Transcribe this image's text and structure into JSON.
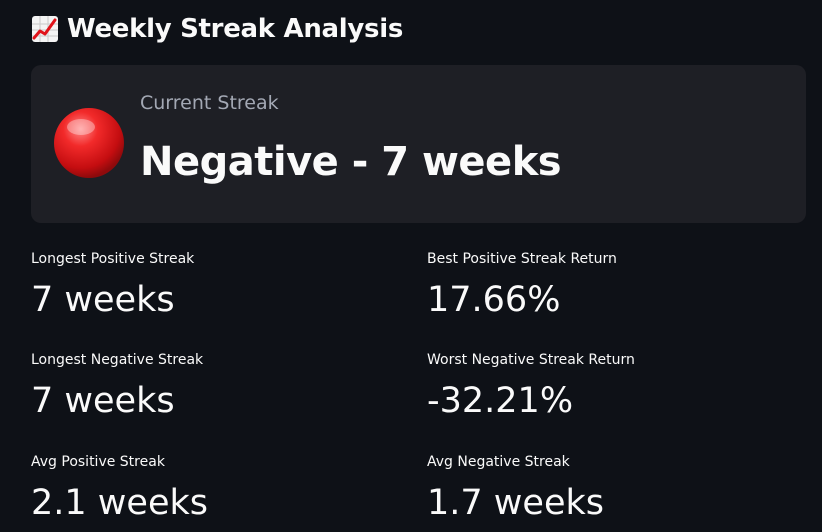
{
  "header": {
    "title": "Weekly Streak Analysis",
    "icon": "chart-increasing-icon"
  },
  "current_streak": {
    "label": "Current Streak",
    "value": "Negative - 7 weeks",
    "indicator": "red-circle-icon",
    "indicator_color": "#e0131a"
  },
  "metrics": {
    "longest_positive": {
      "label": "Longest Positive Streak",
      "value": "7 weeks"
    },
    "best_positive_return": {
      "label": "Best Positive Streak Return",
      "value": "17.66%"
    },
    "longest_negative": {
      "label": "Longest Negative Streak",
      "value": "7 weeks"
    },
    "worst_negative_return": {
      "label": "Worst Negative Streak Return",
      "value": "-32.21%"
    },
    "avg_positive": {
      "label": "Avg Positive Streak",
      "value": "2.1 weeks"
    },
    "avg_negative": {
      "label": "Avg Negative Streak",
      "value": "1.7 weeks"
    }
  },
  "colors": {
    "background": "#0e1117",
    "card": "#1e1f25",
    "text": "#fafafa",
    "muted": "#a3a8b4"
  }
}
